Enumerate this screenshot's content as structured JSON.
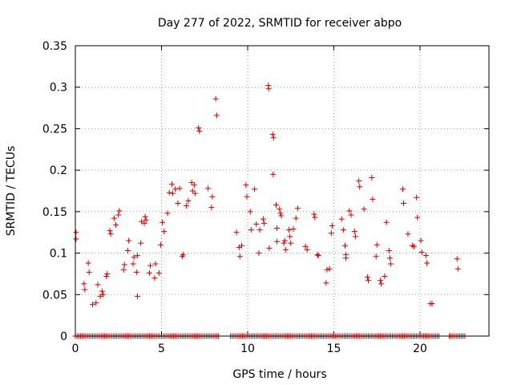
{
  "chart_data": {
    "type": "scatter",
    "title": "Day 277 of 2022, SRMTID for receiver abpo",
    "xlabel": "GPS time / hours",
    "ylabel": "SRMTID / TECUs",
    "xlim": [
      0,
      24
    ],
    "ylim": [
      0,
      0.35
    ],
    "x_ticks": [
      0,
      5,
      10,
      15,
      20
    ],
    "x_tick_labels": [
      "0",
      "5",
      "10",
      "15",
      "20"
    ],
    "y_ticks": [
      0,
      0.05,
      0.1,
      0.15,
      0.2,
      0.25,
      0.3,
      0.35
    ],
    "y_tick_labels": [
      "0",
      "0.05",
      "0.1",
      "0.15",
      "0.2",
      "0.25",
      "0.3",
      "0.35"
    ],
    "grid": true,
    "marker": "+",
    "color": "#cc0000",
    "zero_line": {
      "x_start": 0,
      "x_end": 22.6,
      "step": 0.1,
      "gaps": [
        [
          8.3,
          8.9
        ],
        [
          21.2,
          21.7
        ]
      ]
    },
    "points": [
      [
        0.04,
        0.125
      ],
      [
        0.04,
        0.117
      ],
      [
        0.5,
        0.063
      ],
      [
        0.55,
        0.056
      ],
      [
        0.75,
        0.088
      ],
      [
        0.8,
        0.077
      ],
      [
        1.0,
        0.038
      ],
      [
        1.2,
        0.04
      ],
      [
        1.3,
        0.062
      ],
      [
        1.45,
        0.048
      ],
      [
        1.55,
        0.054
      ],
      [
        1.6,
        0.05
      ],
      [
        1.8,
        0.072
      ],
      [
        1.85,
        0.075
      ],
      [
        2.0,
        0.127
      ],
      [
        2.05,
        0.123
      ],
      [
        2.25,
        0.142
      ],
      [
        2.35,
        0.134
      ],
      [
        2.5,
        0.146
      ],
      [
        2.55,
        0.151
      ],
      [
        2.8,
        0.08
      ],
      [
        2.85,
        0.086
      ],
      [
        3.05,
        0.103
      ],
      [
        3.1,
        0.115
      ],
      [
        3.35,
        0.087
      ],
      [
        3.4,
        0.095
      ],
      [
        3.55,
        0.077
      ],
      [
        3.6,
        0.048
      ],
      [
        3.6,
        0.097
      ],
      [
        3.8,
        0.112
      ],
      [
        3.85,
        0.138
      ],
      [
        4.0,
        0.136
      ],
      [
        4.05,
        0.144
      ],
      [
        4.1,
        0.14
      ],
      [
        4.3,
        0.076
      ],
      [
        4.35,
        0.085
      ],
      [
        4.6,
        0.07
      ],
      [
        4.65,
        0.087
      ],
      [
        4.85,
        0.076
      ],
      [
        4.95,
        0.11
      ],
      [
        5.05,
        0.137
      ],
      [
        5.15,
        0.126
      ],
      [
        5.35,
        0.148
      ],
      [
        5.45,
        0.173
      ],
      [
        5.6,
        0.183
      ],
      [
        5.65,
        0.172
      ],
      [
        5.8,
        0.177
      ],
      [
        5.95,
        0.16
      ],
      [
        6.05,
        0.178
      ],
      [
        6.2,
        0.096
      ],
      [
        6.25,
        0.098
      ],
      [
        6.45,
        0.157
      ],
      [
        6.55,
        0.163
      ],
      [
        6.75,
        0.185
      ],
      [
        6.8,
        0.175
      ],
      [
        6.9,
        0.182
      ],
      [
        6.95,
        0.172
      ],
      [
        7.15,
        0.251
      ],
      [
        7.2,
        0.247
      ],
      [
        7.7,
        0.178
      ],
      [
        7.9,
        0.155
      ],
      [
        7.95,
        0.168
      ],
      [
        8.15,
        0.286
      ],
      [
        8.2,
        0.266
      ],
      [
        9.35,
        0.125
      ],
      [
        9.5,
        0.107
      ],
      [
        9.55,
        0.096
      ],
      [
        9.65,
        0.109
      ],
      [
        9.9,
        0.182
      ],
      [
        9.95,
        0.168
      ],
      [
        10.15,
        0.15
      ],
      [
        10.2,
        0.128
      ],
      [
        10.4,
        0.177
      ],
      [
        10.5,
        0.135
      ],
      [
        10.65,
        0.1
      ],
      [
        10.7,
        0.128
      ],
      [
        10.9,
        0.141
      ],
      [
        10.95,
        0.136
      ],
      [
        11.2,
        0.302
      ],
      [
        11.22,
        0.298
      ],
      [
        11.25,
        0.106
      ],
      [
        11.45,
        0.243
      ],
      [
        11.5,
        0.239
      ],
      [
        11.48,
        0.195
      ],
      [
        11.65,
        0.158
      ],
      [
        11.7,
        0.13
      ],
      [
        11.7,
        0.114
      ],
      [
        11.85,
        0.153
      ],
      [
        11.9,
        0.148
      ],
      [
        11.95,
        0.145
      ],
      [
        12.1,
        0.112
      ],
      [
        12.15,
        0.115
      ],
      [
        12.2,
        0.104
      ],
      [
        12.4,
        0.128
      ],
      [
        12.45,
        0.12
      ],
      [
        12.5,
        0.112
      ],
      [
        12.65,
        0.129
      ],
      [
        12.8,
        0.142
      ],
      [
        12.9,
        0.154
      ],
      [
        13.35,
        0.108
      ],
      [
        13.45,
        0.104
      ],
      [
        13.85,
        0.147
      ],
      [
        13.9,
        0.143
      ],
      [
        14.05,
        0.098
      ],
      [
        14.1,
        0.097
      ],
      [
        14.55,
        0.064
      ],
      [
        14.6,
        0.08
      ],
      [
        14.75,
        0.081
      ],
      [
        14.85,
        0.124
      ],
      [
        14.9,
        0.133
      ],
      [
        15.45,
        0.141
      ],
      [
        15.55,
        0.128
      ],
      [
        15.65,
        0.109
      ],
      [
        15.7,
        0.098
      ],
      [
        15.7,
        0.094
      ],
      [
        15.9,
        0.151
      ],
      [
        16.0,
        0.146
      ],
      [
        16.2,
        0.126
      ],
      [
        16.25,
        0.12
      ],
      [
        16.45,
        0.187
      ],
      [
        16.5,
        0.18
      ],
      [
        16.75,
        0.153
      ],
      [
        16.95,
        0.071
      ],
      [
        17.0,
        0.067
      ],
      [
        17.2,
        0.191
      ],
      [
        17.25,
        0.165
      ],
      [
        17.45,
        0.096
      ],
      [
        17.5,
        0.11
      ],
      [
        17.7,
        0.067
      ],
      [
        17.75,
        0.063
      ],
      [
        17.95,
        0.072
      ],
      [
        18.05,
        0.137
      ],
      [
        18.2,
        0.103
      ],
      [
        18.25,
        0.094
      ],
      [
        18.3,
        0.087
      ],
      [
        19.0,
        0.177
      ],
      [
        19.05,
        0.16
      ],
      [
        19.3,
        0.123
      ],
      [
        19.55,
        0.109
      ],
      [
        19.65,
        0.108
      ],
      [
        19.8,
        0.167
      ],
      [
        19.85,
        0.143
      ],
      [
        20.05,
        0.115
      ],
      [
        20.1,
        0.101
      ],
      [
        20.35,
        0.097
      ],
      [
        20.4,
        0.088
      ],
      [
        20.6,
        0.039
      ],
      [
        20.7,
        0.039
      ],
      [
        22.15,
        0.093
      ],
      [
        22.2,
        0.081
      ]
    ]
  }
}
